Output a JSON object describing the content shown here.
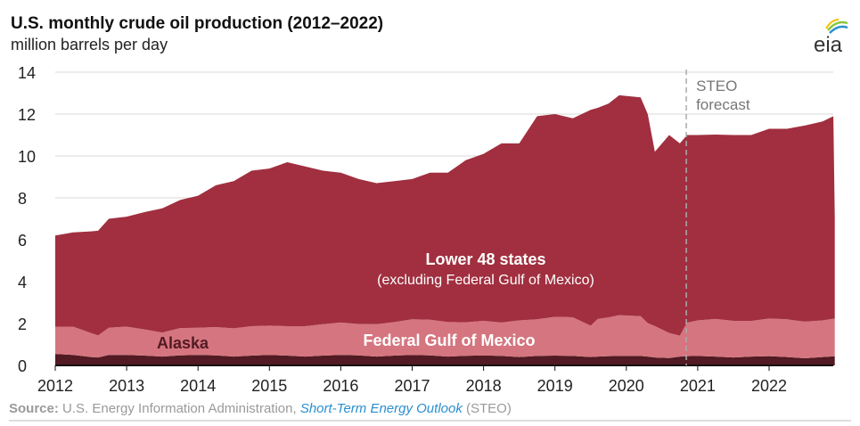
{
  "title": "U.S. monthly crude oil production (2012–2022)",
  "subtitle": "million barrels per day",
  "logo_text": "eia",
  "source": {
    "label": "Source:",
    "text": " U.S. Energy Information Administration, ",
    "link": "Short-Term Energy Outlook",
    "suffix": " (STEO)"
  },
  "chart_data": {
    "type": "area",
    "stacked": true,
    "title": "U.S. monthly crude oil production (2012–2022)",
    "ylabel": "million barrels per day",
    "xlim": [
      2012,
      2022.92
    ],
    "ylim": [
      0,
      14
    ],
    "yticks": [
      0,
      2,
      4,
      6,
      8,
      10,
      12,
      14
    ],
    "xticks": [
      2012,
      2013,
      2014,
      2015,
      2016,
      2017,
      2018,
      2019,
      2020,
      2021,
      2022
    ],
    "grid": true,
    "annotation": {
      "label1": "STEO",
      "label2": "forecast",
      "x": 2020.84
    },
    "labels": {
      "lower48": "Lower 48 states",
      "lower48_sub": "(excluding Federal Gulf of Mexico)",
      "gom": "Federal Gulf of Mexico",
      "alaska": "Alaska"
    },
    "colors": {
      "lower48": "#a12f3f",
      "gom": "#d5757f",
      "alaska": "#521a22"
    },
    "x": [
      2012,
      2012.25,
      2012.5,
      2012.6,
      2012.75,
      2013,
      2013.25,
      2013.5,
      2013.75,
      2014,
      2014.25,
      2014.5,
      2014.75,
      2015,
      2015.25,
      2015.5,
      2015.75,
      2016,
      2016.25,
      2016.5,
      2016.75,
      2017,
      2017.25,
      2017.5,
      2017.75,
      2018,
      2018.25,
      2018.5,
      2018.75,
      2019,
      2019.25,
      2019.5,
      2019.6,
      2019.75,
      2019.9,
      2020.2,
      2020.3,
      2020.4,
      2020.6,
      2020.75,
      2020.85,
      2021,
      2021.25,
      2021.5,
      2021.75,
      2022,
      2022.25,
      2022.5,
      2022.75,
      2022.9,
      2022.92
    ],
    "series": [
      {
        "name": "Alaska",
        "values": [
          0.55,
          0.5,
          0.4,
          0.38,
          0.5,
          0.5,
          0.47,
          0.42,
          0.48,
          0.5,
          0.48,
          0.42,
          0.47,
          0.5,
          0.47,
          0.42,
          0.47,
          0.5,
          0.48,
          0.42,
          0.47,
          0.5,
          0.48,
          0.42,
          0.46,
          0.48,
          0.45,
          0.4,
          0.45,
          0.47,
          0.45,
          0.4,
          0.42,
          0.44,
          0.45,
          0.45,
          0.42,
          0.38,
          0.35,
          0.42,
          0.44,
          0.45,
          0.42,
          0.38,
          0.42,
          0.44,
          0.4,
          0.34,
          0.4,
          0.43,
          0.43
        ]
      },
      {
        "name": "Federal Gulf of Mexico",
        "values": [
          1.3,
          1.35,
          1.15,
          1.05,
          1.3,
          1.35,
          1.25,
          1.15,
          1.3,
          1.3,
          1.35,
          1.35,
          1.4,
          1.4,
          1.4,
          1.45,
          1.5,
          1.55,
          1.5,
          1.55,
          1.6,
          1.7,
          1.7,
          1.65,
          1.6,
          1.65,
          1.6,
          1.75,
          1.75,
          1.85,
          1.85,
          1.5,
          1.8,
          1.85,
          1.95,
          1.9,
          1.6,
          1.5,
          1.2,
          1.0,
          1.6,
          1.7,
          1.8,
          1.75,
          1.7,
          1.8,
          1.8,
          1.75,
          1.75,
          1.8,
          1.8
        ]
      },
      {
        "name": "Lower 48 states",
        "values": [
          4.35,
          4.5,
          4.85,
          5.0,
          5.2,
          5.25,
          5.6,
          5.93,
          6.12,
          6.3,
          6.77,
          7.03,
          7.43,
          7.5,
          7.83,
          7.63,
          7.33,
          7.15,
          6.92,
          6.73,
          6.73,
          6.7,
          7.02,
          7.13,
          7.74,
          7.97,
          8.55,
          8.45,
          9.7,
          9.68,
          9.5,
          10.3,
          10.08,
          10.21,
          10.5,
          10.45,
          9.98,
          8.32,
          9.45,
          9.18,
          8.96,
          8.85,
          8.8,
          8.87,
          8.88,
          9.06,
          9.1,
          9.36,
          9.5,
          9.67,
          4.87
        ]
      }
    ]
  }
}
